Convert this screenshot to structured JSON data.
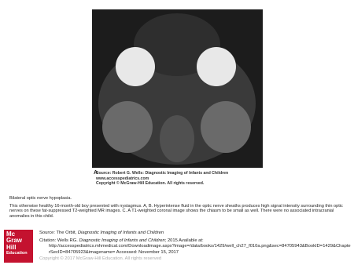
{
  "figure": {
    "panel_label": "A",
    "source_line": "Source: Robert G. Wells: Diagnostic Imaging of Infants and Children",
    "website": "www.accesspediatrics.com",
    "copyright": "Copyright © McGraw-Hill Education. All rights reserved."
  },
  "caption": {
    "title": "Bilateral optic nerve hypoplasia.",
    "body": " This otherwise healthy 16-month-old boy presented with nystagmus. A, B. Hyperintense fluid in the optic nerve sheaths produces high signal intensity surrounding thin optic nerves on these fat-suppressed T2-weighted MR images. C. A T1-weighted coronal image shows the chiasm to be small as well. There were no associated intracranial anomalies in this child."
  },
  "footer": {
    "logo": [
      "Mc",
      "Graw",
      "Hill",
      "Education"
    ],
    "source_prefix": "Source: The Orbit, ",
    "source_title": "Diagnostic Imaging of Infants and Children",
    "citation_prefix": "Citation: Wells RG. ",
    "citation_title": "Diagnostic Imaging of Infants and Children",
    "citation_rest": "; 2015 Available at:",
    "citation_url": "http://accesspediatrics.mhmedical.com/Downloadimage.aspx?image=/data/books/1429/well_ch27_f010a.png&sec=84705943&BookID=1429&ChapterSecID=84705923&imagename= Accessed: November 15, 2017",
    "copyright": "Copyright © 2017 McGraw-Hill Education. All rights reserved"
  }
}
